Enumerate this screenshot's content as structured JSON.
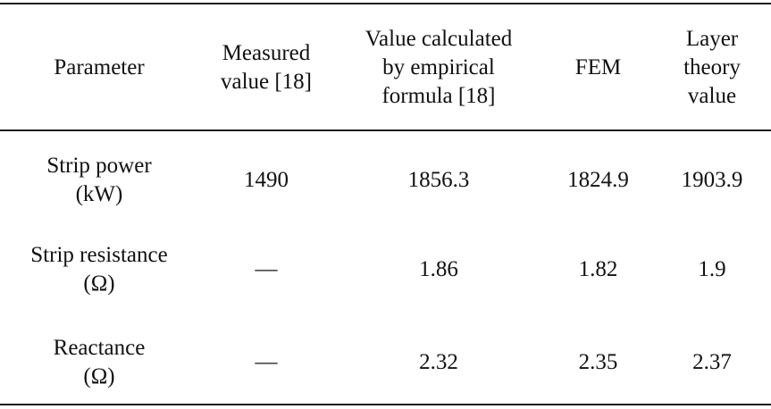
{
  "table": {
    "headers": [
      "Parameter",
      "Measured\nvalue [18]",
      "Value calculated\nby empirical\nformula [18]",
      "FEM",
      "Layer\ntheory\nvalue"
    ],
    "rows": [
      [
        "Strip power\n(kW)",
        "1490",
        "1856.3",
        "1824.9",
        "1903.9"
      ],
      [
        "Strip resistance\n(Ω)",
        "—",
        "1.86",
        "1.82",
        "1.9"
      ],
      [
        "Reactance\n(Ω)",
        "—",
        "2.32",
        "2.35",
        "2.37"
      ]
    ]
  }
}
